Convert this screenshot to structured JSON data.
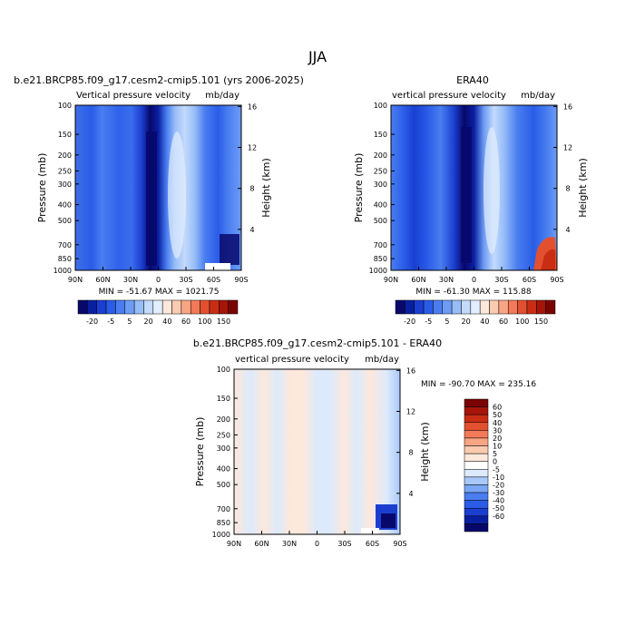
{
  "title": "JJA",
  "panels": [
    {
      "title": "b.e21.BRCP85.f09_g17.cesm2-cmip5.101 (yrs 2006-2025)",
      "left_label": "Vertical pressure velocity",
      "right_label": "mb/day",
      "stats": "MIN = -51.67   MAX = 1021.75"
    },
    {
      "title": "ERA40",
      "left_label": "vertical pressure velocity",
      "right_label": "mb/day",
      "stats": "MIN = -61.30   MAX = 115.88"
    },
    {
      "title": "b.e21.BRCP85.f09_g17.cesm2-cmip5.101 - ERA40",
      "left_label": "vertical pressure velocity",
      "right_label": "mb/day",
      "stats": "MIN = -90.70   MAX = 235.16"
    }
  ],
  "axes": {
    "x_ticks": [
      "90N",
      "60N",
      "30N",
      "0",
      "30S",
      "60S",
      "90S"
    ],
    "y_label": "Pressure (mb)",
    "y_ticks": [
      "100",
      "150",
      "200",
      "250",
      "300",
      "400",
      "500",
      "700",
      "850",
      "1000"
    ],
    "y2_label": "Height (km)",
    "y2_ticks": [
      "16",
      "12",
      "8",
      "4"
    ]
  },
  "colorbar_top": {
    "labels": [
      "-20",
      "-5",
      "5",
      "20",
      "40",
      "60",
      "100",
      "150"
    ],
    "colors": [
      "#08086b",
      "#0a1fa0",
      "#1a3fd0",
      "#2a5ce8",
      "#4a7ef0",
      "#6d9cf5",
      "#97bdf8",
      "#c3dafb",
      "#e2eefd",
      "#fde8dc",
      "#fbcbb0",
      "#f8a583",
      "#f27a58",
      "#e3502f",
      "#c92d14",
      "#a51508",
      "#7a0303"
    ]
  },
  "colorbar_diff": {
    "labels": [
      "60",
      "50",
      "40",
      "30",
      "20",
      "10",
      "5",
      "0",
      "-5",
      "-10",
      "-20",
      "-30",
      "-40",
      "-50",
      "-60"
    ],
    "colors": [
      "#7a0303",
      "#a51508",
      "#c92d14",
      "#e3502f",
      "#f27a58",
      "#f8a583",
      "#fbcbb0",
      "#fde8dc",
      "#ffffff",
      "#dceafc",
      "#a9c8f9",
      "#7aa7f4",
      "#4a7ef0",
      "#2a5ce8",
      "#1a3fd0",
      "#0a1fa0",
      "#08086b"
    ]
  },
  "chart_data": [
    {
      "type": "heatmap",
      "title": "b.e21.BRCP85.f09_g17.cesm2-cmip5.101 (yrs 2006-2025)",
      "xlabel": "",
      "ylabel": "Pressure (mb)",
      "x": [
        "90N",
        "60N",
        "30N",
        "0",
        "30S",
        "60S",
        "90S"
      ],
      "ylim": [
        1000,
        100
      ],
      "y_scale": "log",
      "units": "mb/day",
      "min": -51.67,
      "max": 1021.75
    },
    {
      "type": "heatmap",
      "title": "ERA40",
      "xlabel": "",
      "ylabel": "Pressure (mb)",
      "x": [
        "90N",
        "60N",
        "30N",
        "0",
        "30S",
        "60S",
        "90S"
      ],
      "ylim": [
        1000,
        100
      ],
      "y_scale": "log",
      "units": "mb/day",
      "min": -61.3,
      "max": 115.88
    },
    {
      "type": "heatmap",
      "title": "b.e21.BRCP85.f09_g17.cesm2-cmip5.101 - ERA40",
      "xlabel": "",
      "ylabel": "Pressure (mb)",
      "x": [
        "90N",
        "60N",
        "30N",
        "0",
        "30S",
        "60S",
        "90S"
      ],
      "ylim": [
        1000,
        100
      ],
      "y_scale": "log",
      "units": "mb/day",
      "min": -90.7,
      "max": 235.16
    }
  ]
}
